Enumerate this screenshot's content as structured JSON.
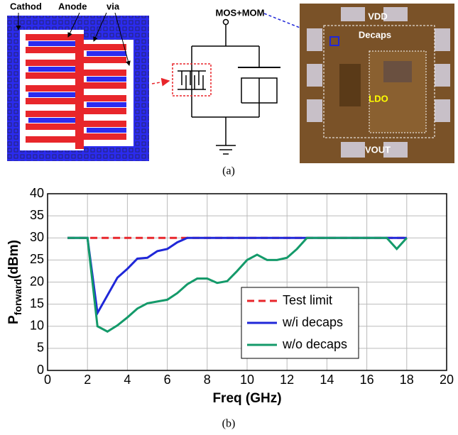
{
  "figure_a": {
    "layout_labels": [
      "Cathod",
      "Anode",
      "via"
    ],
    "schematic_label": "MOS+MOM",
    "die_labels": [
      "VDD",
      "Decaps",
      "LDO",
      "VOUT"
    ],
    "caption": "(a)"
  },
  "chart_data": {
    "type": "line",
    "xlabel": "Freq (GHz)",
    "ylabel": {
      "main": "P",
      "sub": "forward",
      "unit": "(dBm)"
    },
    "xlim": [
      0,
      20
    ],
    "ylim": [
      0,
      40
    ],
    "xticks": [
      0,
      2,
      4,
      6,
      8,
      10,
      12,
      14,
      16,
      18,
      20
    ],
    "yticks": [
      0,
      5,
      10,
      15,
      20,
      25,
      30,
      35,
      40
    ],
    "grid": true,
    "legend": "lower right",
    "series": [
      {
        "name": "Test limit",
        "color": "#e8262b",
        "dash": true,
        "x": [
          1,
          18
        ],
        "values": [
          30,
          30
        ]
      },
      {
        "name": "w/i decaps",
        "color": "#1f27d8",
        "dash": false,
        "x": [
          1,
          2,
          2.5,
          3,
          3.5,
          4,
          4.5,
          5,
          5.5,
          6,
          6.5,
          7,
          18
        ],
        "values": [
          30,
          30,
          13,
          17,
          21,
          23,
          25.3,
          25.5,
          27,
          27.5,
          29,
          30,
          30
        ]
      },
      {
        "name": "w/o decaps",
        "color": "#149a6a",
        "dash": false,
        "x": [
          1,
          2,
          2.5,
          3,
          3.5,
          4,
          4.5,
          5,
          5.5,
          6,
          6.5,
          7,
          7.5,
          8,
          8.5,
          9,
          9.5,
          10,
          10.5,
          11,
          11.5,
          12,
          12.5,
          13,
          17,
          17.5,
          18
        ],
        "values": [
          30,
          30,
          10,
          8.8,
          10.2,
          12,
          14,
          15.2,
          15.6,
          16,
          17.5,
          19.5,
          20.8,
          20.8,
          19.8,
          20.2,
          22.5,
          25,
          26.2,
          25,
          25,
          25.5,
          27.5,
          30,
          30,
          27.5,
          30
        ]
      }
    ],
    "caption": "(b)"
  }
}
